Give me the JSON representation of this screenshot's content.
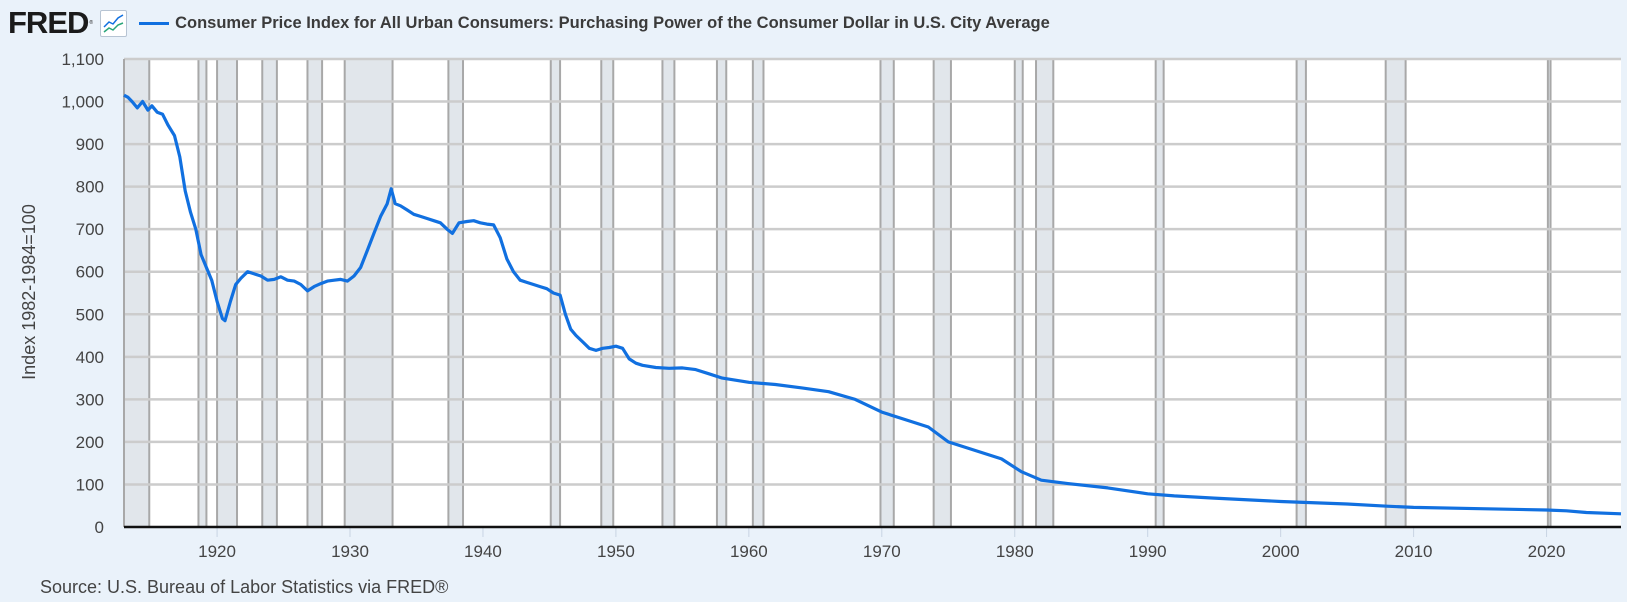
{
  "header": {
    "logo": "FRED",
    "logo_mark": "®",
    "graph_icon": "line-graph-icon",
    "title": "Consumer Price Index for All Urban Consumers: Purchasing Power of the Consumer Dollar in U.S. City Average",
    "series_color": "#1170e0"
  },
  "footer": {
    "source": "Source: U.S. Bureau of Labor Statistics via FRED®"
  },
  "chart_data": {
    "type": "line",
    "title": "Consumer Price Index for All Urban Consumers: Purchasing Power of the Consumer Dollar in U.S. City Average",
    "xlabel": "",
    "ylabel": "Index 1982-1984=100",
    "ylim": [
      0,
      1100
    ],
    "xlim": [
      1913,
      2025.6
    ],
    "y_ticks": [
      0,
      100,
      200,
      300,
      400,
      500,
      600,
      700,
      800,
      900,
      1000,
      1100
    ],
    "y_tick_labels": [
      "0",
      "100",
      "200",
      "300",
      "400",
      "500",
      "600",
      "700",
      "800",
      "900",
      "1,000",
      "1,100"
    ],
    "x_ticks": [
      1920,
      1930,
      1940,
      1950,
      1960,
      1970,
      1980,
      1990,
      2000,
      2010,
      2020
    ],
    "grid": true,
    "legend_position": "top",
    "recession_shading": [
      [
        1913.0,
        1914.9
      ],
      [
        1918.6,
        1919.2
      ],
      [
        1920.0,
        1921.5
      ],
      [
        1923.4,
        1924.5
      ],
      [
        1926.8,
        1927.9
      ],
      [
        1929.6,
        1933.2
      ],
      [
        1937.4,
        1938.5
      ],
      [
        1945.1,
        1945.8
      ],
      [
        1948.9,
        1949.8
      ],
      [
        1953.5,
        1954.4
      ],
      [
        1957.6,
        1958.3
      ],
      [
        1960.3,
        1961.1
      ],
      [
        1969.9,
        1970.9
      ],
      [
        1973.9,
        1975.2
      ],
      [
        1980.0,
        1980.6
      ],
      [
        1981.6,
        1982.9
      ],
      [
        1990.6,
        1991.2
      ],
      [
        2001.2,
        2001.9
      ],
      [
        2007.9,
        2009.4
      ],
      [
        2020.1,
        2020.3
      ]
    ],
    "series": [
      {
        "name": "Purchasing Power of the Consumer Dollar",
        "color": "#1170e0",
        "x": [
          1913.0,
          1913.3,
          1913.6,
          1914.0,
          1914.4,
          1914.8,
          1915.1,
          1915.5,
          1915.9,
          1916.3,
          1916.8,
          1917.2,
          1917.6,
          1918.0,
          1918.4,
          1918.8,
          1919.2,
          1919.6,
          1920.0,
          1920.4,
          1920.6,
          1921.0,
          1921.4,
          1921.8,
          1922.3,
          1922.8,
          1923.3,
          1923.8,
          1924.3,
          1924.8,
          1925.3,
          1925.8,
          1926.3,
          1926.8,
          1927.3,
          1927.8,
          1928.3,
          1928.8,
          1929.3,
          1929.8,
          1930.3,
          1930.8,
          1931.3,
          1931.8,
          1932.3,
          1932.8,
          1933.1,
          1933.4,
          1933.8,
          1934.3,
          1934.8,
          1935.3,
          1935.8,
          1936.3,
          1936.8,
          1937.3,
          1937.7,
          1938.2,
          1938.8,
          1939.3,
          1939.8,
          1940.3,
          1940.8,
          1941.3,
          1941.8,
          1942.3,
          1942.8,
          1943.3,
          1943.8,
          1944.3,
          1944.8,
          1945.3,
          1945.8,
          1946.2,
          1946.6,
          1947.0,
          1947.5,
          1948.0,
          1948.5,
          1949.0,
          1949.5,
          1950.0,
          1950.5,
          1951.0,
          1951.5,
          1952.0,
          1953.0,
          1954.0,
          1955.0,
          1956.0,
          1957.0,
          1958.0,
          1959.0,
          1960.0,
          1962.0,
          1964.0,
          1966.0,
          1968.0,
          1970.0,
          1972.0,
          1973.5,
          1975.0,
          1977.0,
          1979.0,
          1980.5,
          1982.0,
          1984.0,
          1987.0,
          1990.0,
          1992.0,
          1995.0,
          2000.0,
          2005.0,
          2008.0,
          2010.0,
          2015.0,
          2020.0,
          2021.5,
          2023.0,
          2025.6
        ],
        "values": [
          1015,
          1010,
          1000,
          985,
          1000,
          980,
          990,
          975,
          970,
          945,
          920,
          870,
          790,
          740,
          700,
          640,
          610,
          580,
          530,
          490,
          485,
          530,
          570,
          585,
          600,
          595,
          590,
          580,
          582,
          588,
          580,
          578,
          570,
          555,
          565,
          572,
          578,
          580,
          582,
          578,
          590,
          610,
          650,
          690,
          730,
          760,
          795,
          760,
          755,
          745,
          735,
          730,
          725,
          720,
          715,
          700,
          690,
          715,
          718,
          720,
          715,
          712,
          710,
          680,
          630,
          600,
          580,
          575,
          570,
          565,
          560,
          550,
          545,
          500,
          465,
          450,
          435,
          420,
          415,
          420,
          422,
          425,
          420,
          395,
          385,
          380,
          375,
          373,
          374,
          370,
          360,
          350,
          345,
          340,
          335,
          327,
          318,
          300,
          270,
          250,
          235,
          200,
          180,
          160,
          130,
          110,
          102,
          92,
          78,
          73,
          68,
          60,
          54,
          49,
          46,
          43,
          40,
          38,
          34,
          31
        ]
      }
    ]
  }
}
